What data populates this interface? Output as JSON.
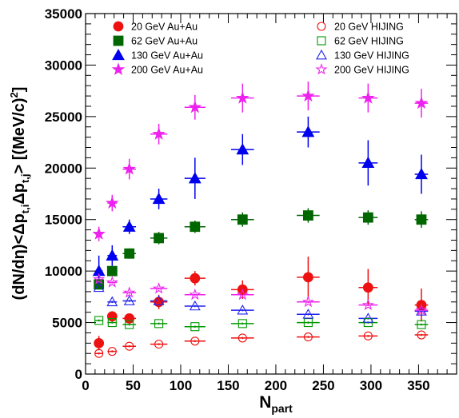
{
  "chart_data": {
    "type": "scatter",
    "title": "",
    "xlabel": {
      "main": "N",
      "sub": "part"
    },
    "ylabel": "(dN/dη)<Δp_{t,i}Δp_{t,j}> [(MeV/c)^{2}]",
    "xlim": [
      0,
      390
    ],
    "ylim": [
      0,
      35000
    ],
    "x_ticks": [
      0,
      50,
      100,
      150,
      200,
      250,
      300,
      350
    ],
    "y_ticks": [
      0,
      5000,
      10000,
      15000,
      20000,
      25000,
      30000,
      35000
    ],
    "x_tick_labels": [
      "0",
      "50",
      "100",
      "150",
      "200",
      "250",
      "300",
      "350"
    ],
    "y_tick_labels": [
      "0",
      "5000",
      "10000",
      "15000",
      "20000",
      "25000",
      "30000",
      "35000"
    ],
    "grid": false,
    "legend_placement": "top",
    "series": [
      {
        "name": "20 GeV Au+Au",
        "marker": "circle",
        "filled": true,
        "color": "#ee1111",
        "legend_col": 0,
        "legend_row": 0,
        "points": [
          {
            "x": 14,
            "y": 3000,
            "yerr": 700,
            "xerr": 4
          },
          {
            "x": 28,
            "y": 5600,
            "yerr": 500,
            "xerr": 5
          },
          {
            "x": 46,
            "y": 5400,
            "yerr": 450,
            "xerr": 7
          },
          {
            "x": 77,
            "y": 7000,
            "yerr": 700,
            "xerr": 9
          },
          {
            "x": 115,
            "y": 9300,
            "yerr": 700,
            "xerr": 11
          },
          {
            "x": 165,
            "y": 8200,
            "yerr": 900,
            "xerr": 12
          },
          {
            "x": 234,
            "y": 9400,
            "yerr": 2000,
            "xerr": 12
          },
          {
            "x": 297,
            "y": 8400,
            "yerr": 1800,
            "xerr": 10
          },
          {
            "x": 353,
            "y": 6700,
            "yerr": 1600,
            "xerr": 7
          }
        ]
      },
      {
        "name": "62 GeV Au+Au",
        "marker": "square",
        "filled": true,
        "color": "#006600",
        "legend_col": 0,
        "legend_row": 1,
        "points": [
          {
            "x": 14,
            "y": 8700,
            "yerr": 500,
            "xerr": 4
          },
          {
            "x": 28,
            "y": 10000,
            "yerr": 500,
            "xerr": 5
          },
          {
            "x": 46,
            "y": 11700,
            "yerr": 500,
            "xerr": 7
          },
          {
            "x": 77,
            "y": 13200,
            "yerr": 600,
            "xerr": 9
          },
          {
            "x": 115,
            "y": 14300,
            "yerr": 600,
            "xerr": 11
          },
          {
            "x": 165,
            "y": 15000,
            "yerr": 700,
            "xerr": 12
          },
          {
            "x": 234,
            "y": 15400,
            "yerr": 700,
            "xerr": 12
          },
          {
            "x": 297,
            "y": 15200,
            "yerr": 700,
            "xerr": 10
          },
          {
            "x": 353,
            "y": 15000,
            "yerr": 800,
            "xerr": 7
          }
        ]
      },
      {
        "name": "130 GeV Au+Au",
        "marker": "triangle",
        "filled": true,
        "color": "#0000ee",
        "legend_col": 0,
        "legend_row": 2,
        "points": [
          {
            "x": 14,
            "y": 10000,
            "yerr": 1500,
            "xerr": 4
          },
          {
            "x": 28,
            "y": 11500,
            "yerr": 1000,
            "xerr": 5
          },
          {
            "x": 46,
            "y": 14300,
            "yerr": 700,
            "xerr": 7
          },
          {
            "x": 77,
            "y": 17000,
            "yerr": 1000,
            "xerr": 9
          },
          {
            "x": 115,
            "y": 19000,
            "yerr": 2000,
            "xerr": 11
          },
          {
            "x": 165,
            "y": 21800,
            "yerr": 1500,
            "xerr": 12
          },
          {
            "x": 234,
            "y": 23500,
            "yerr": 1500,
            "xerr": 12
          },
          {
            "x": 297,
            "y": 20500,
            "yerr": 2200,
            "xerr": 10
          },
          {
            "x": 353,
            "y": 19400,
            "yerr": 1900,
            "xerr": 7
          }
        ]
      },
      {
        "name": "200 GeV Au+Au",
        "marker": "star",
        "filled": true,
        "color": "#ee22ee",
        "legend_col": 0,
        "legend_row": 3,
        "points": [
          {
            "x": 14,
            "y": 13600,
            "yerr": 700,
            "xerr": 4
          },
          {
            "x": 28,
            "y": 16600,
            "yerr": 800,
            "xerr": 5
          },
          {
            "x": 46,
            "y": 19900,
            "yerr": 1000,
            "xerr": 7
          },
          {
            "x": 77,
            "y": 23300,
            "yerr": 1000,
            "xerr": 9
          },
          {
            "x": 115,
            "y": 25900,
            "yerr": 1200,
            "xerr": 11
          },
          {
            "x": 165,
            "y": 26800,
            "yerr": 1400,
            "xerr": 12
          },
          {
            "x": 234,
            "y": 27000,
            "yerr": 1400,
            "xerr": 12
          },
          {
            "x": 297,
            "y": 26800,
            "yerr": 1400,
            "xerr": 10
          },
          {
            "x": 353,
            "y": 26300,
            "yerr": 1400,
            "xerr": 7
          }
        ]
      },
      {
        "name": "20 GeV HIJING",
        "marker": "circle",
        "filled": false,
        "color": "#ee1111",
        "legend_col": 1,
        "legend_row": 0,
        "points": [
          {
            "x": 14,
            "y": 2000,
            "yerr": 100,
            "xerr": 4
          },
          {
            "x": 28,
            "y": 2200,
            "yerr": 100,
            "xerr": 5
          },
          {
            "x": 46,
            "y": 2700,
            "yerr": 100,
            "xerr": 7
          },
          {
            "x": 77,
            "y": 2900,
            "yerr": 100,
            "xerr": 9
          },
          {
            "x": 115,
            "y": 3200,
            "yerr": 100,
            "xerr": 11
          },
          {
            "x": 165,
            "y": 3500,
            "yerr": 100,
            "xerr": 12
          },
          {
            "x": 234,
            "y": 3600,
            "yerr": 100,
            "xerr": 12
          },
          {
            "x": 297,
            "y": 3700,
            "yerr": 100,
            "xerr": 10
          },
          {
            "x": 353,
            "y": 3800,
            "yerr": 100,
            "xerr": 7
          }
        ]
      },
      {
        "name": "62 GeV HIJING",
        "marker": "square",
        "filled": false,
        "color": "#009900",
        "legend_col": 1,
        "legend_row": 1,
        "points": [
          {
            "x": 14,
            "y": 5200,
            "yerr": 100,
            "xerr": 4
          },
          {
            "x": 28,
            "y": 5000,
            "yerr": 100,
            "xerr": 5
          },
          {
            "x": 46,
            "y": 4800,
            "yerr": 100,
            "xerr": 7
          },
          {
            "x": 77,
            "y": 4900,
            "yerr": 100,
            "xerr": 9
          },
          {
            "x": 115,
            "y": 4600,
            "yerr": 100,
            "xerr": 11
          },
          {
            "x": 165,
            "y": 4900,
            "yerr": 100,
            "xerr": 12
          },
          {
            "x": 234,
            "y": 5000,
            "yerr": 100,
            "xerr": 12
          },
          {
            "x": 297,
            "y": 5000,
            "yerr": 100,
            "xerr": 10
          },
          {
            "x": 353,
            "y": 4800,
            "yerr": 100,
            "xerr": 7
          }
        ]
      },
      {
        "name": "130 GeV HIJING",
        "marker": "triangle",
        "filled": false,
        "color": "#2222ee",
        "legend_col": 1,
        "legend_row": 2,
        "points": [
          {
            "x": 14,
            "y": 8400,
            "yerr": 100,
            "xerr": 4
          },
          {
            "x": 28,
            "y": 7000,
            "yerr": 100,
            "xerr": 5
          },
          {
            "x": 46,
            "y": 7100,
            "yerr": 100,
            "xerr": 7
          },
          {
            "x": 77,
            "y": 7100,
            "yerr": 100,
            "xerr": 9
          },
          {
            "x": 115,
            "y": 6600,
            "yerr": 100,
            "xerr": 11
          },
          {
            "x": 165,
            "y": 6200,
            "yerr": 100,
            "xerr": 12
          },
          {
            "x": 234,
            "y": 5800,
            "yerr": 100,
            "xerr": 12
          },
          {
            "x": 297,
            "y": 5400,
            "yerr": 100,
            "xerr": 10
          },
          {
            "x": 353,
            "y": 6100,
            "yerr": 100,
            "xerr": 7
          }
        ]
      },
      {
        "name": "200 GeV HIJING",
        "marker": "star",
        "filled": false,
        "color": "#ee22ee",
        "legend_col": 1,
        "legend_row": 3,
        "points": [
          {
            "x": 14,
            "y": 9200,
            "yerr": 100,
            "xerr": 4
          },
          {
            "x": 28,
            "y": 8900,
            "yerr": 100,
            "xerr": 5
          },
          {
            "x": 46,
            "y": 7900,
            "yerr": 100,
            "xerr": 7
          },
          {
            "x": 77,
            "y": 8300,
            "yerr": 100,
            "xerr": 9
          },
          {
            "x": 115,
            "y": 7700,
            "yerr": 100,
            "xerr": 11
          },
          {
            "x": 165,
            "y": 7700,
            "yerr": 100,
            "xerr": 12
          },
          {
            "x": 234,
            "y": 7000,
            "yerr": 100,
            "xerr": 12
          },
          {
            "x": 297,
            "y": 6700,
            "yerr": 100,
            "xerr": 10
          },
          {
            "x": 353,
            "y": 6200,
            "yerr": 100,
            "xerr": 7
          }
        ]
      }
    ]
  }
}
